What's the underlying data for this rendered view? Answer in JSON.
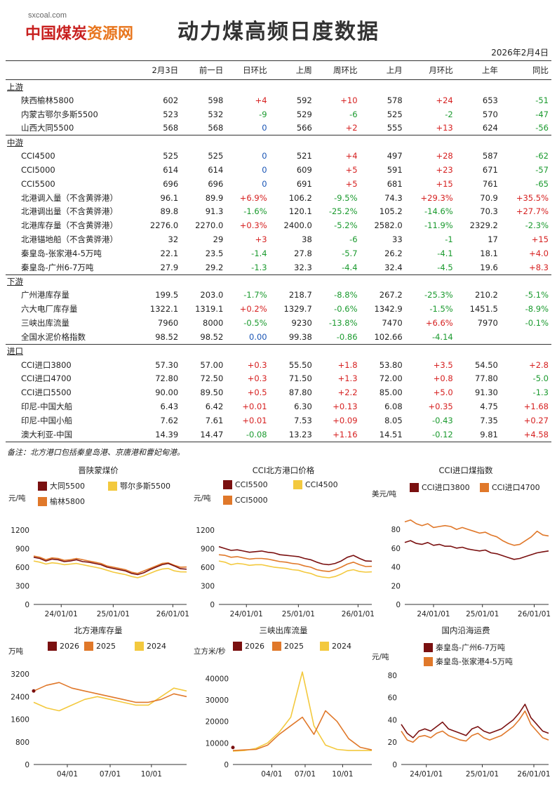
{
  "header": {
    "logo_small": "sxcoal.com",
    "logo_main_a": "中国煤炭",
    "logo_main_b": "资源网",
    "title": "动力煤高频日度数据",
    "date": "2026年2月4日"
  },
  "table": {
    "columns": [
      "",
      "2月3日",
      "前一日",
      "日环比",
      "上周",
      "周环比",
      "上月",
      "月环比",
      "上年",
      "同比"
    ],
    "sections": [
      {
        "label": "上游",
        "rows": [
          [
            "陕西榆林5800",
            "602",
            "598",
            "+4",
            "592",
            "+10",
            "578",
            "+24",
            "653",
            "-51"
          ],
          [
            "内蒙古鄂尔多斯5500",
            "523",
            "532",
            "-9",
            "529",
            "-6",
            "525",
            "-2",
            "570",
            "-47"
          ],
          [
            "山西大同5500",
            "568",
            "568",
            "0",
            "566",
            "+2",
            "555",
            "+13",
            "624",
            "-56"
          ]
        ]
      },
      {
        "label": "中游",
        "rows": [
          [
            "CCI4500",
            "525",
            "525",
            "0",
            "521",
            "+4",
            "497",
            "+28",
            "587",
            "-62"
          ],
          [
            "CCI5000",
            "614",
            "614",
            "0",
            "609",
            "+5",
            "591",
            "+23",
            "671",
            "-57"
          ],
          [
            "CCI5500",
            "696",
            "696",
            "0",
            "691",
            "+5",
            "681",
            "+15",
            "761",
            "-65"
          ],
          [
            "北港调入量（不含黄骅港）",
            "96.1",
            "89.9",
            "+6.9%",
            "106.2",
            "-9.5%",
            "74.3",
            "+29.3%",
            "70.9",
            "+35.5%"
          ],
          [
            "北港调出量（不含黄骅港）",
            "89.8",
            "91.3",
            "-1.6%",
            "120.1",
            "-25.2%",
            "105.2",
            "-14.6%",
            "70.3",
            "+27.7%"
          ],
          [
            "北港库存量（不含黄骅港）",
            "2276.0",
            "2270.0",
            "+0.3%",
            "2400.0",
            "-5.2%",
            "2582.0",
            "-11.9%",
            "2329.2",
            "-2.3%"
          ],
          [
            "北港锚地船（不含黄骅港）",
            "32",
            "29",
            "+3",
            "38",
            "-6",
            "33",
            "-1",
            "17",
            "+15"
          ],
          [
            "秦皇岛-张家港4-5万吨",
            "22.1",
            "23.5",
            "-1.4",
            "27.8",
            "-5.7",
            "26.2",
            "-4.1",
            "18.1",
            "+4.0"
          ],
          [
            "秦皇岛-广州6-7万吨",
            "27.9",
            "29.2",
            "-1.3",
            "32.3",
            "-4.4",
            "32.4",
            "-4.5",
            "19.6",
            "+8.3"
          ]
        ]
      },
      {
        "label": "下游",
        "rows": [
          [
            "广州港库存量",
            "199.5",
            "203.0",
            "-1.7%",
            "218.7",
            "-8.8%",
            "267.2",
            "-25.3%",
            "210.2",
            "-5.1%"
          ],
          [
            "六大电厂库存量",
            "1322.1",
            "1319.1",
            "+0.2%",
            "1329.7",
            "-0.6%",
            "1342.9",
            "-1.5%",
            "1451.5",
            "-8.9%"
          ],
          [
            "三峡出库流量",
            "7960",
            "8000",
            "-0.5%",
            "9230",
            "-13.8%",
            "7470",
            "+6.6%",
            "7970",
            "-0.1%"
          ],
          [
            "全国水泥价格指数",
            "98.52",
            "98.52",
            "0.00",
            "99.38",
            "-0.86",
            "102.66",
            "-4.14",
            "",
            ""
          ]
        ]
      },
      {
        "label": "进口",
        "rows": [
          [
            "CCI进口3800",
            "57.30",
            "57.00",
            "+0.3",
            "55.50",
            "+1.8",
            "53.80",
            "+3.5",
            "54.50",
            "+2.8"
          ],
          [
            "CCI进口4700",
            "72.80",
            "72.50",
            "+0.3",
            "71.50",
            "+1.3",
            "72.00",
            "+0.8",
            "77.80",
            "-5.0"
          ],
          [
            "CCI进口5500",
            "90.00",
            "89.50",
            "+0.5",
            "87.80",
            "+2.2",
            "85.00",
            "+5.0",
            "91.30",
            "-1.3"
          ],
          [
            "印尼-中国大船",
            "6.43",
            "6.42",
            "+0.01",
            "6.30",
            "+0.13",
            "6.08",
            "+0.35",
            "4.75",
            "+1.68"
          ],
          [
            "印尼-中国小船",
            "7.62",
            "7.61",
            "+0.01",
            "7.53",
            "+0.09",
            "8.05",
            "-0.43",
            "7.35",
            "+0.27"
          ],
          [
            "澳大利亚-中国",
            "14.39",
            "14.47",
            "-0.08",
            "13.23",
            "+1.16",
            "14.51",
            "-0.12",
            "9.81",
            "+4.58"
          ]
        ]
      }
    ]
  },
  "note": "备注：北方港口包括秦皇岛港、京唐港和曹妃甸港。",
  "colors": {
    "dark": "#7a1010",
    "mid": "#e0782a",
    "light": "#f3c93e",
    "red": "#d62020",
    "green": "#1a9a2e",
    "blue": "#1a55b5"
  },
  "chart_data": [
    {
      "type": "line",
      "title": "晋陕蒙煤价",
      "ylabel": "元/吨",
      "yticks": [
        0,
        300,
        600,
        900,
        1200
      ],
      "ylim": [
        0,
        1300
      ],
      "xticks": [
        "24/01/01",
        "25/01/01",
        "26/01/01"
      ],
      "xlim": [
        0,
        25
      ],
      "x": [
        0,
        1,
        2,
        3,
        4,
        5,
        6,
        7,
        8,
        9,
        10,
        11,
        12,
        13,
        14,
        15,
        16,
        17,
        18,
        19,
        20,
        21,
        22,
        23,
        24,
        25
      ],
      "series": [
        {
          "name": "大同5500",
          "color": "#7a1010",
          "values": [
            760,
            740,
            700,
            730,
            720,
            690,
            700,
            720,
            690,
            680,
            660,
            640,
            600,
            580,
            560,
            540,
            500,
            480,
            510,
            560,
            600,
            640,
            660,
            620,
            575,
            568
          ]
        },
        {
          "name": "鄂尔多斯5500",
          "color": "#f3c93e",
          "values": [
            700,
            680,
            650,
            670,
            660,
            640,
            650,
            660,
            640,
            620,
            600,
            580,
            550,
            520,
            500,
            480,
            450,
            430,
            460,
            500,
            540,
            570,
            580,
            540,
            525,
            523
          ]
        },
        {
          "name": "榆林5800",
          "color": "#e0782a",
          "values": [
            780,
            760,
            720,
            750,
            740,
            710,
            720,
            740,
            720,
            700,
            680,
            660,
            620,
            600,
            580,
            560,
            520,
            500,
            540,
            580,
            620,
            660,
            670,
            630,
            600,
            602
          ]
        }
      ]
    },
    {
      "type": "line",
      "title": "CCI北方港口价格",
      "ylabel": "元/吨",
      "yticks": [
        0,
        300,
        600,
        900,
        1200
      ],
      "ylim": [
        0,
        1300
      ],
      "xticks": [
        "24/01/01",
        "25/01/01",
        "26/01/01"
      ],
      "xlim": [
        0,
        25
      ],
      "x": [
        0,
        1,
        2,
        3,
        4,
        5,
        6,
        7,
        8,
        9,
        10,
        11,
        12,
        13,
        14,
        15,
        16,
        17,
        18,
        19,
        20,
        21,
        22,
        23,
        24,
        25
      ],
      "series": [
        {
          "name": "CCI5500",
          "color": "#7a1010",
          "values": [
            930,
            900,
            870,
            880,
            860,
            840,
            850,
            860,
            840,
            830,
            800,
            790,
            780,
            770,
            740,
            720,
            680,
            650,
            640,
            660,
            700,
            760,
            790,
            740,
            700,
            696
          ]
        },
        {
          "name": "CCI4500",
          "color": "#f3c93e",
          "values": [
            700,
            680,
            640,
            660,
            650,
            630,
            640,
            640,
            620,
            600,
            590,
            580,
            560,
            550,
            520,
            500,
            460,
            440,
            430,
            450,
            490,
            540,
            560,
            530,
            520,
            525
          ]
        },
        {
          "name": "CCI5000",
          "color": "#e0782a",
          "values": [
            800,
            790,
            760,
            770,
            750,
            730,
            740,
            740,
            730,
            710,
            690,
            680,
            660,
            650,
            620,
            600,
            560,
            540,
            530,
            560,
            600,
            650,
            680,
            640,
            610,
            614
          ]
        }
      ]
    },
    {
      "type": "line",
      "title": "CCI进口煤指数",
      "ylabel": "美元/吨",
      "yticks": [
        0,
        20,
        40,
        60,
        80
      ],
      "ylim": [
        0,
        95
      ],
      "xticks": [
        "24/01/01",
        "25/01/01",
        "26/01/01"
      ],
      "xlim": [
        0,
        25
      ],
      "x": [
        0,
        1,
        2,
        3,
        4,
        5,
        6,
        7,
        8,
        9,
        10,
        11,
        12,
        13,
        14,
        15,
        16,
        17,
        18,
        19,
        20,
        21,
        22,
        23,
        24,
        25
      ],
      "series": [
        {
          "name": "CCI进口3800",
          "color": "#7a1010",
          "values": [
            66,
            68,
            65,
            64,
            66,
            63,
            64,
            62,
            62,
            60,
            61,
            59,
            58,
            57,
            58,
            55,
            54,
            52,
            50,
            48,
            49,
            51,
            53,
            55,
            56,
            57
          ]
        },
        {
          "name": "CCI进口4700",
          "color": "#e0782a",
          "values": [
            88,
            90,
            86,
            84,
            86,
            82,
            83,
            84,
            83,
            80,
            82,
            80,
            78,
            76,
            77,
            74,
            72,
            68,
            65,
            63,
            64,
            68,
            72,
            78,
            74,
            73
          ]
        }
      ]
    },
    {
      "type": "line",
      "title": "北方港库存量",
      "ylabel": "万吨",
      "yticks": [
        0,
        800,
        1600,
        2400,
        3200
      ],
      "ylim": [
        0,
        3500
      ],
      "xticks": [
        "04/01",
        "07/01",
        "10/01"
      ],
      "xlim": [
        0,
        12
      ],
      "x": [
        0,
        1,
        2,
        3,
        4,
        5,
        6,
        7,
        8,
        9,
        10,
        11,
        12
      ],
      "series": [
        {
          "name": "2026",
          "color": "#7a1010",
          "values": [
            2600,
            null,
            null,
            null,
            null,
            null,
            null,
            null,
            null,
            null,
            null,
            null,
            null
          ]
        },
        {
          "name": "2025",
          "color": "#e0782a",
          "values": [
            2600,
            2800,
            2900,
            2700,
            2600,
            2500,
            2400,
            2300,
            2200,
            2200,
            2300,
            2500,
            2400
          ]
        },
        {
          "name": "2024",
          "color": "#f3c93e",
          "values": [
            2200,
            2000,
            1900,
            2100,
            2300,
            2400,
            2300,
            2200,
            2100,
            2100,
            2400,
            2700,
            2600
          ]
        }
      ]
    },
    {
      "type": "line",
      "title": "三峡出库流量",
      "ylabel": "立方米/秒",
      "yticks": [
        0,
        10000,
        20000,
        30000,
        40000
      ],
      "ylim": [
        0,
        46000
      ],
      "xticks": [
        "04/01",
        "07/01",
        "10/01"
      ],
      "xlim": [
        0,
        12
      ],
      "x": [
        0,
        1,
        2,
        3,
        4,
        5,
        6,
        7,
        8,
        9,
        10,
        11,
        12
      ],
      "series": [
        {
          "name": "2026",
          "color": "#7a1010",
          "values": [
            7900,
            null,
            null,
            null,
            null,
            null,
            null,
            null,
            null,
            null,
            null,
            null,
            null
          ]
        },
        {
          "name": "2025",
          "color": "#e0782a",
          "values": [
            6500,
            6800,
            7000,
            9000,
            14000,
            18000,
            22000,
            14000,
            25000,
            20000,
            12000,
            8000,
            6800
          ]
        },
        {
          "name": "2024",
          "color": "#f3c93e",
          "values": [
            6200,
            6500,
            7500,
            10000,
            15000,
            22000,
            43000,
            18000,
            9000,
            7000,
            6500,
            6500,
            6500
          ]
        }
      ]
    },
    {
      "type": "line",
      "title": "国内沿海运费",
      "ylabel": "元/吨",
      "yticks": [
        0,
        20,
        40,
        60,
        80
      ],
      "ylim": [
        0,
        85
      ],
      "xticks": [
        "24/01/01",
        "25/01/01",
        "26/01/01"
      ],
      "xlim": [
        0,
        25
      ],
      "x": [
        0,
        1,
        2,
        3,
        4,
        5,
        6,
        7,
        8,
        9,
        10,
        11,
        12,
        13,
        14,
        15,
        16,
        17,
        18,
        19,
        20,
        21,
        22,
        23,
        24,
        25
      ],
      "series": [
        {
          "name": "秦皇岛-广州6-7万吨",
          "color": "#7a1010",
          "values": [
            36,
            28,
            24,
            30,
            32,
            30,
            34,
            38,
            32,
            30,
            28,
            26,
            32,
            34,
            30,
            28,
            30,
            32,
            36,
            40,
            46,
            54,
            42,
            36,
            30,
            28
          ]
        },
        {
          "name": "秦皇岛-张家港4-5万吨",
          "color": "#e0782a",
          "values": [
            30,
            22,
            20,
            25,
            26,
            24,
            28,
            30,
            26,
            24,
            22,
            21,
            26,
            28,
            24,
            22,
            24,
            26,
            30,
            34,
            40,
            48,
            36,
            30,
            24,
            22
          ]
        }
      ]
    }
  ]
}
